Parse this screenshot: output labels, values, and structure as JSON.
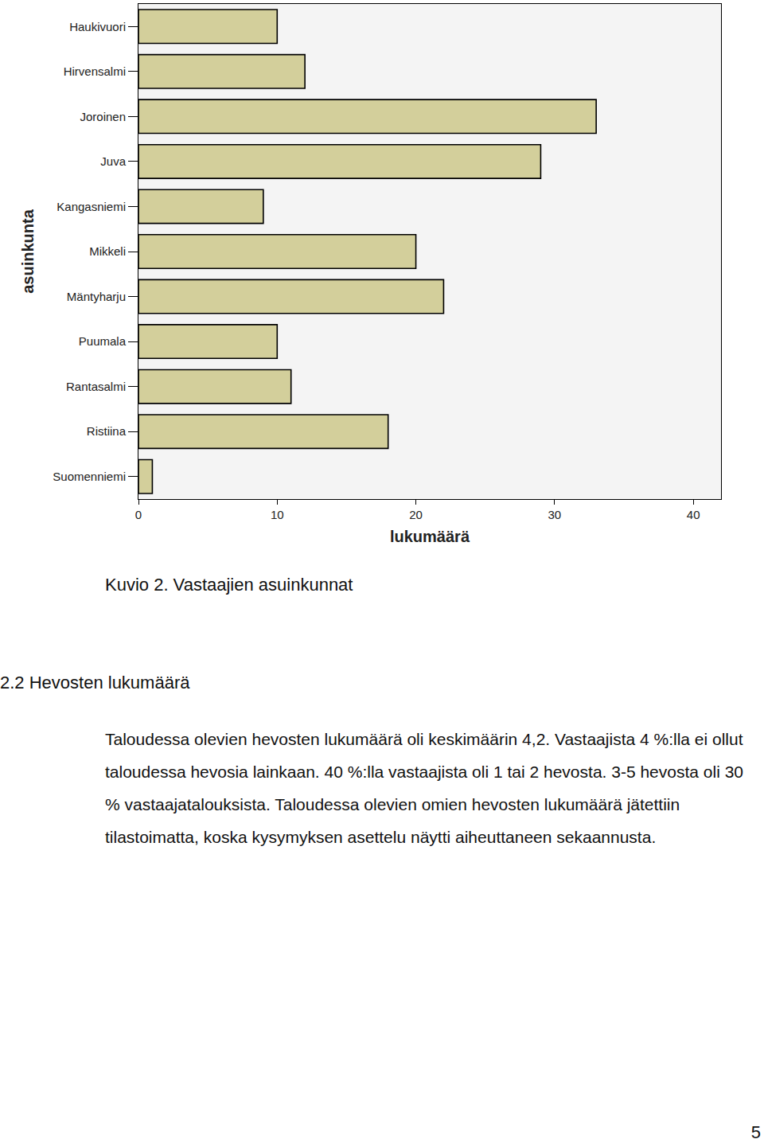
{
  "chart_data": {
    "type": "bar",
    "orientation": "horizontal",
    "x_label": "lukumäärä",
    "y_label": "asuinkunta",
    "categories": [
      "Haukivuori",
      "Hirvensalmi",
      "Joroinen",
      "Juva",
      "Kangasniemi",
      "Mikkeli",
      "Mäntyharju",
      "Puumala",
      "Rantasalmi",
      "Ristiina",
      "Suomenniemi"
    ],
    "values": [
      10,
      12,
      33,
      29,
      9,
      20,
      22,
      10,
      11,
      18,
      1
    ],
    "color": "#d3cf9b",
    "xlim": [
      0,
      42
    ],
    "xticks": [
      0,
      10,
      20,
      30,
      40
    ],
    "grid": false
  },
  "caption": "Kuvio 2. Vastaajien asuinkunnat",
  "heading": "2.2 Hevosten lukumäärä",
  "paragraph": "Taloudessa olevien hevosten lukumäärä oli keskimäärin 4,2. Vastaajista 4 %:lla ei ollut taloudessa hevosia lainkaan. 40 %:lla vastaajista oli 1 tai 2 hevosta. 3-5 hevosta oli 30 % vastaajatalouksista. Taloudessa olevien omien hevosten lukumäärä jätettiin tilastoimatta, koska kysymyksen asettelu näytti aiheuttaneen sekaannusta.",
  "page_number": "5"
}
